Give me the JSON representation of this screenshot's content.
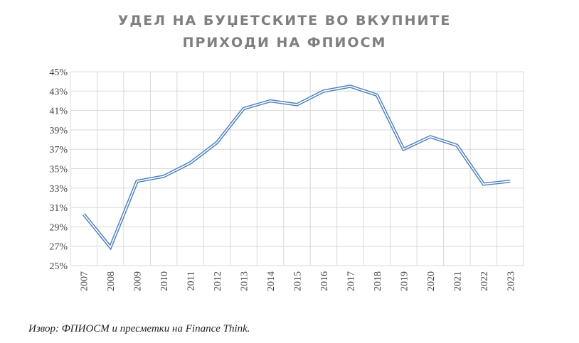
{
  "chart_data": {
    "type": "line",
    "title_lines": [
      "УДЕЛ НА БУЏЕТСКИТЕ ВО ВКУПНИТЕ",
      "ПРИХОДИ НА ФПИОСМ"
    ],
    "categories": [
      "2007",
      "2008",
      "2009",
      "2010",
      "2011",
      "2012",
      "2013",
      "2014",
      "2015",
      "2016",
      "2017",
      "2018",
      "2019",
      "2020",
      "2021",
      "2022",
      "2023"
    ],
    "series": [
      {
        "values": [
          30.3,
          26.9,
          33.7,
          34.2,
          35.6,
          37.7,
          41.2,
          42.0,
          41.6,
          43.0,
          43.5,
          42.6,
          37.0,
          38.3,
          37.4,
          33.4,
          33.7
        ],
        "color": "#4f81bd"
      }
    ],
    "ylim": [
      25,
      45
    ],
    "yticks": [
      "25%",
      "27%",
      "29%",
      "31%",
      "33%",
      "35%",
      "37%",
      "39%",
      "41%",
      "43%",
      "45%"
    ],
    "grid": true,
    "legend": "none"
  },
  "source_note": "Извор: ФПИОСМ и пресметки  на Finance Think."
}
